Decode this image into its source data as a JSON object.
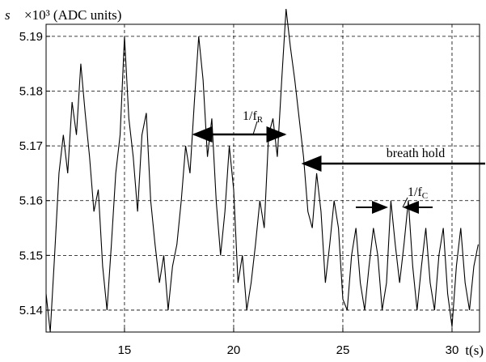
{
  "chart_data": {
    "type": "line",
    "ylabel_symbol": "s",
    "ylabel": "×10³ (ADC units)",
    "xlabel": "t(s)",
    "color": "#000000",
    "x": [
      11.41,
      11.6,
      11.8,
      12.0,
      12.2,
      12.4,
      12.6,
      12.8,
      13.0,
      13.2,
      13.4,
      13.6,
      13.8,
      14.0,
      14.2,
      14.4,
      14.6,
      14.8,
      15.0,
      15.2,
      15.4,
      15.6,
      15.8,
      16.0,
      16.2,
      16.4,
      16.6,
      16.8,
      17.0,
      17.2,
      17.4,
      17.6,
      17.8,
      18.0,
      18.2,
      18.4,
      18.6,
      18.8,
      19.0,
      19.2,
      19.4,
      19.6,
      19.8,
      20.0,
      20.2,
      20.4,
      20.6,
      20.8,
      21.0,
      21.2,
      21.4,
      21.6,
      21.8,
      22.0,
      22.2,
      22.4,
      22.6,
      22.8,
      23.0,
      23.2,
      23.4,
      23.6,
      23.8,
      24.0,
      24.2,
      24.4,
      24.6,
      24.8,
      25.0,
      25.2,
      25.4,
      25.6,
      25.8,
      26.0,
      26.2,
      26.4,
      26.6,
      26.8,
      27.0,
      27.2,
      27.4,
      27.6,
      27.8,
      28.0,
      28.2,
      28.4,
      28.6,
      28.8,
      29.0,
      29.2,
      29.4,
      29.6,
      29.8,
      30.0,
      30.2,
      30.4,
      30.6,
      30.8,
      31.0,
      31.2
    ],
    "values": [
      5.143,
      5.136,
      5.15,
      5.165,
      5.172,
      5.165,
      5.178,
      5.172,
      5.185,
      5.176,
      5.168,
      5.158,
      5.162,
      5.148,
      5.14,
      5.152,
      5.165,
      5.172,
      5.19,
      5.175,
      5.168,
      5.158,
      5.172,
      5.176,
      5.16,
      5.152,
      5.145,
      5.15,
      5.14,
      5.148,
      5.152,
      5.16,
      5.17,
      5.165,
      5.178,
      5.19,
      5.182,
      5.168,
      5.175,
      5.16,
      5.15,
      5.158,
      5.17,
      5.162,
      5.145,
      5.15,
      5.14,
      5.145,
      5.152,
      5.16,
      5.155,
      5.172,
      5.175,
      5.168,
      5.182,
      5.195,
      5.188,
      5.182,
      5.175,
      5.168,
      5.158,
      5.155,
      5.165,
      5.158,
      5.145,
      5.152,
      5.16,
      5.155,
      5.142,
      5.14,
      5.15,
      5.155,
      5.145,
      5.14,
      5.148,
      5.155,
      5.15,
      5.14,
      5.145,
      5.16,
      5.152,
      5.145,
      5.152,
      5.16,
      5.148,
      5.14,
      5.148,
      5.155,
      5.145,
      5.14,
      5.15,
      5.155,
      5.143,
      5.137,
      5.148,
      5.155,
      5.145,
      5.14,
      5.148,
      5.152
    ],
    "xlim": [
      11.41,
      31.26
    ],
    "ylim": [
      5.136,
      5.1922
    ],
    "xticks": [
      15,
      20,
      25,
      30
    ],
    "yticks": [
      5.14,
      5.15,
      5.16,
      5.17,
      5.18,
      5.19
    ],
    "grid": true,
    "annotations": [
      {
        "text": "1/f",
        "sub": "R"
      },
      {
        "text": "breath hold"
      },
      {
        "text": "1/f",
        "sub": "C"
      }
    ]
  }
}
